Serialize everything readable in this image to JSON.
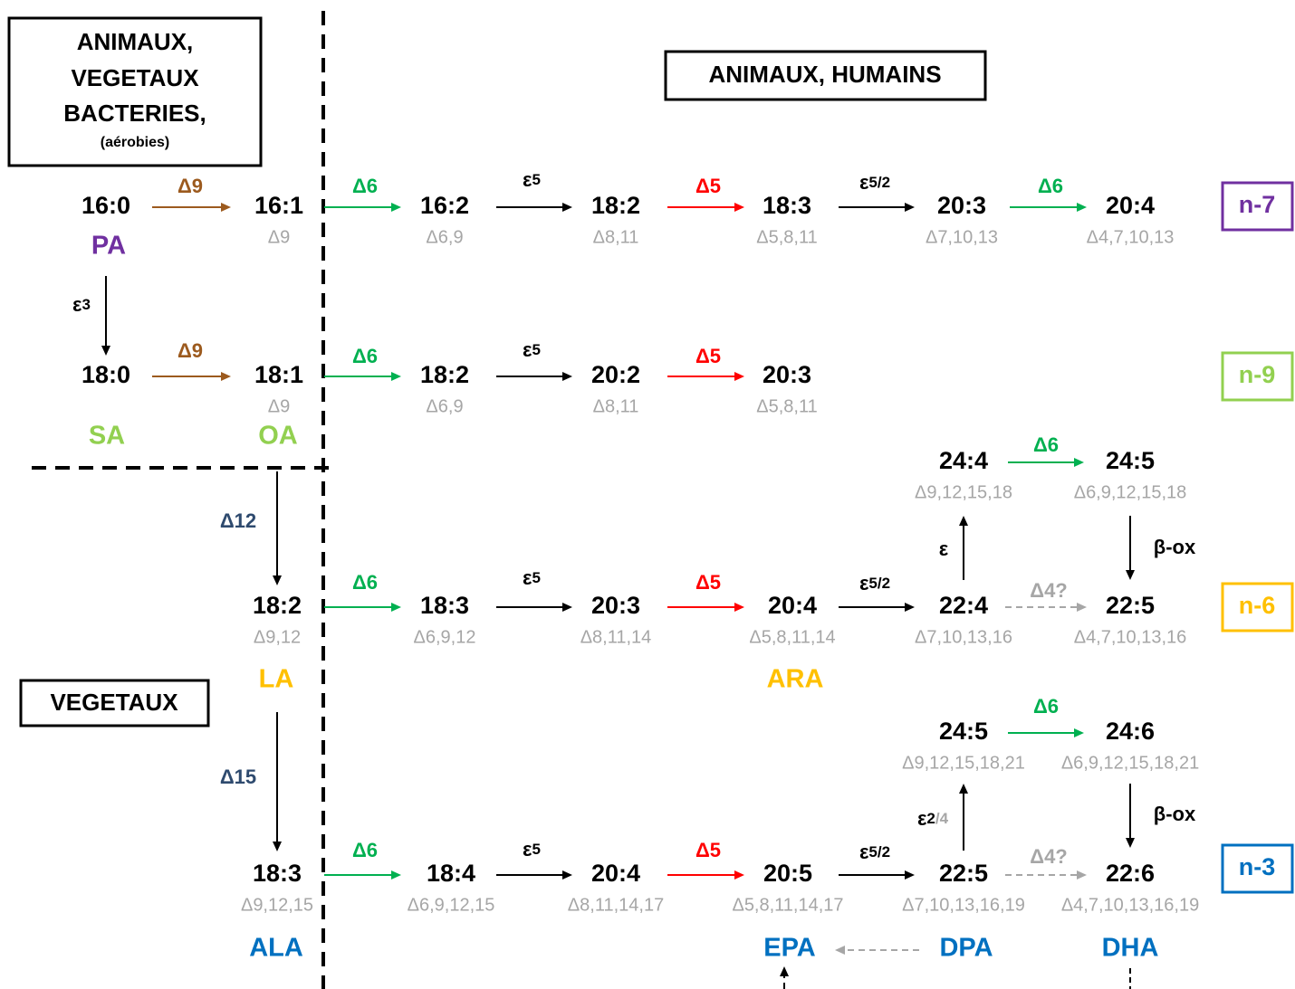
{
  "boxes": {
    "top_left": [
      "ANIMAUX,",
      "VEGETAUX",
      "BACTERIES,",
      "(aérobies)"
    ],
    "top_right": "ANIMAUX, HUMAINS",
    "bottom_left": "VEGETAUX"
  },
  "families": [
    "n-7",
    "n-9",
    "n-6",
    "n-3"
  ],
  "nodes": [
    {
      "label": "16:0"
    },
    {
      "label": "16:1",
      "sub": "Δ9"
    },
    {
      "label": "16:2",
      "sub": "Δ6,9"
    },
    {
      "label": "18:2",
      "sub": "Δ8,11"
    },
    {
      "label": "18:3",
      "sub": "Δ5,8,11"
    },
    {
      "label": "20:3",
      "sub": "Δ7,10,13"
    },
    {
      "label": "20:4",
      "sub": "Δ4,7,10,13"
    },
    {
      "label": "18:0"
    },
    {
      "label": "18:1",
      "sub": "Δ9"
    },
    {
      "label": "18:2",
      "sub": "Δ6,9"
    },
    {
      "label": "20:2",
      "sub": "Δ8,11"
    },
    {
      "label": "20:3",
      "sub": "Δ5,8,11"
    },
    {
      "label": "24:4",
      "sub": "Δ9,12,15,18"
    },
    {
      "label": "24:5",
      "sub": "Δ6,9,12,15,18"
    },
    {
      "label": "18:2",
      "sub": "Δ9,12"
    },
    {
      "label": "18:3",
      "sub": "Δ6,9,12"
    },
    {
      "label": "20:3",
      "sub": "Δ8,11,14"
    },
    {
      "label": "20:4",
      "sub": "Δ5,8,11,14"
    },
    {
      "label": "22:4",
      "sub": "Δ7,10,13,16"
    },
    {
      "label": "22:5",
      "sub": "Δ4,7,10,13,16"
    },
    {
      "label": "24:5",
      "sub": "Δ9,12,15,18,21"
    },
    {
      "label": "24:6",
      "sub": "Δ6,9,12,15,18,21"
    },
    {
      "label": "18:3",
      "sub": "Δ9,12,15"
    },
    {
      "label": "18:4",
      "sub": "Δ6,9,12,15"
    },
    {
      "label": "20:4",
      "sub": "Δ8,11,14,17"
    },
    {
      "label": "20:5",
      "sub": "Δ5,8,11,14,17"
    },
    {
      "label": "22:5",
      "sub": "Δ7,10,13,16,19"
    },
    {
      "label": "22:6",
      "sub": "Δ4,7,10,13,16,19"
    }
  ],
  "names": [
    "PA",
    "SA",
    "OA",
    "LA",
    "ARA",
    "ALA",
    "EPA",
    "DPA",
    "DHA"
  ],
  "enzymes": [
    {
      "label": "Δ9"
    },
    {
      "label": "Δ6"
    },
    {
      "label": "ε",
      "sub": "5"
    },
    {
      "label": "Δ5"
    },
    {
      "label": "ε",
      "sub": "5/2"
    },
    {
      "label": "Δ6"
    },
    {
      "label": "ε",
      "sub": "3"
    },
    {
      "label": "Δ9"
    },
    {
      "label": "Δ6"
    },
    {
      "label": "ε",
      "sub": "5"
    },
    {
      "label": "Δ5"
    },
    {
      "label": "Δ12"
    },
    {
      "label": "Δ6"
    },
    {
      "label": "ε",
      "sub": "5"
    },
    {
      "label": "Δ5"
    },
    {
      "label": "ε",
      "sub": "5/2"
    },
    {
      "label": "Δ4?"
    },
    {
      "label": "ε"
    },
    {
      "label": "Δ6"
    },
    {
      "label": "β-ox"
    },
    {
      "label": "Δ15"
    },
    {
      "label": "Δ6"
    },
    {
      "label": "ε",
      "sub": "5"
    },
    {
      "label": "Δ5"
    },
    {
      "label": "ε",
      "sub": "5/2"
    },
    {
      "label": "Δ4?"
    },
    {
      "label": "ε",
      "sub": "2",
      "sub2": "/4"
    },
    {
      "label": "Δ6"
    },
    {
      "label": "β-ox"
    }
  ]
}
